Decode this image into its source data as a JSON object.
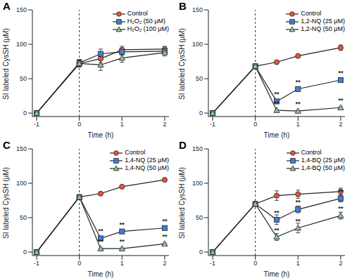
{
  "chart_data": [
    {
      "type": "line",
      "panel_label": "A",
      "x_label": "Time (h)",
      "y_label": "SI labeled CysSH (μM)",
      "x": [
        -1,
        0,
        0.5,
        1,
        2
      ],
      "xlim": [
        -1.1,
        2.1
      ],
      "xticks": [
        -1,
        0,
        1,
        2
      ],
      "ylim": [
        -5,
        150
      ],
      "yticks": [
        0,
        50,
        100,
        150
      ],
      "reference_x": 0,
      "legend": "upper right",
      "series": [
        {
          "name": "Control",
          "color": "#e8553a",
          "marker": "circle",
          "values": [
            0,
            72,
            79,
            92,
            93
          ],
          "errors": [
            0,
            5,
            6,
            5,
            4
          ],
          "annotations": [
            null,
            null,
            null,
            null,
            null
          ]
        },
        {
          "name": "H₂O₂ (50 μM)",
          "color": "#3f7fd9",
          "marker": "square",
          "values": [
            0,
            73,
            86,
            89,
            90
          ],
          "errors": [
            0,
            5,
            7,
            5,
            4
          ],
          "annotations": [
            null,
            null,
            null,
            null,
            null
          ]
        },
        {
          "name": "H₂O₂ (100 μM)",
          "color": "#8cc49a",
          "marker": "triangle",
          "values": [
            0,
            72,
            70,
            80,
            88
          ],
          "errors": [
            0,
            5,
            8,
            6,
            5
          ],
          "annotations": [
            null,
            null,
            null,
            null,
            null
          ]
        }
      ]
    },
    {
      "type": "line",
      "panel_label": "B",
      "x_label": "Time (h)",
      "y_label": "SI labeled CysSH (μM)",
      "x": [
        -1,
        0,
        0.5,
        1,
        2
      ],
      "xlim": [
        -1.1,
        2.1
      ],
      "xticks": [
        -1,
        0,
        1,
        2
      ],
      "ylim": [
        -5,
        150
      ],
      "yticks": [
        0,
        50,
        100,
        150
      ],
      "reference_x": 0,
      "legend": "upper right",
      "series": [
        {
          "name": "Control",
          "color": "#e8553a",
          "marker": "circle",
          "values": [
            0,
            68,
            74,
            83,
            95
          ],
          "errors": [
            0,
            3,
            2,
            2,
            4
          ],
          "annotations": [
            null,
            null,
            null,
            null,
            null
          ]
        },
        {
          "name": "1,2-NQ (25 μM)",
          "color": "#3f7fd9",
          "marker": "square",
          "values": [
            0,
            68,
            17,
            35,
            48
          ],
          "errors": [
            0,
            3,
            3,
            3,
            2
          ],
          "annotations": [
            null,
            null,
            "**",
            "**",
            "**"
          ]
        },
        {
          "name": "1,2-NQ (50 μM)",
          "color": "#8cc49a",
          "marker": "triangle",
          "values": [
            0,
            68,
            4,
            3,
            8
          ],
          "errors": [
            0,
            3,
            1,
            1,
            1
          ],
          "annotations": [
            null,
            null,
            "**",
            "**",
            "**"
          ]
        }
      ]
    },
    {
      "type": "line",
      "panel_label": "C",
      "x_label": "Time (h)",
      "y_label": "SI labeled CysSH (μM)",
      "x": [
        -1,
        0,
        0.5,
        1,
        2
      ],
      "xlim": [
        -1.1,
        2.1
      ],
      "xticks": [
        -1,
        0,
        1,
        2
      ],
      "ylim": [
        -5,
        150
      ],
      "yticks": [
        0,
        50,
        100,
        150
      ],
      "reference_x": 0,
      "legend": "upper right",
      "series": [
        {
          "name": "Control",
          "color": "#e8553a",
          "marker": "circle",
          "values": [
            0,
            80,
            85,
            95,
            105
          ],
          "errors": [
            0,
            2,
            2,
            2,
            2
          ],
          "annotations": [
            null,
            null,
            null,
            null,
            null
          ]
        },
        {
          "name": "1,4-NQ (25 μM)",
          "color": "#3f7fd9",
          "marker": "square",
          "values": [
            0,
            80,
            20,
            30,
            35
          ],
          "errors": [
            0,
            2,
            2,
            2,
            2
          ],
          "annotations": [
            null,
            null,
            "**",
            "**",
            "**"
          ]
        },
        {
          "name": "1,4-NQ (50 μM)",
          "color": "#8cc49a",
          "marker": "triangle",
          "values": [
            0,
            80,
            5,
            5,
            12
          ],
          "errors": [
            0,
            2,
            1,
            1,
            1
          ],
          "annotations": [
            null,
            null,
            "**",
            "**",
            "**"
          ]
        }
      ]
    },
    {
      "type": "line",
      "panel_label": "D",
      "x_label": "Time (h)",
      "y_label": "SI labeled CysSH (μM)",
      "x": [
        -1,
        0,
        0.5,
        1,
        2
      ],
      "xlim": [
        -1.1,
        2.1
      ],
      "xticks": [
        -1,
        0,
        1,
        2
      ],
      "ylim": [
        -5,
        150
      ],
      "yticks": [
        0,
        50,
        100,
        150
      ],
      "reference_x": 0,
      "legend": "upper right",
      "series": [
        {
          "name": "Control",
          "color": "#e8553a",
          "marker": "circle",
          "values": [
            0,
            70,
            82,
            84,
            88
          ],
          "errors": [
            0,
            3,
            7,
            6,
            5
          ],
          "annotations": [
            null,
            null,
            null,
            null,
            null
          ]
        },
        {
          "name": "1,4-BQ (25 μM)",
          "color": "#3f7fd9",
          "marker": "square",
          "values": [
            0,
            70,
            47,
            62,
            78
          ],
          "errors": [
            0,
            3,
            7,
            5,
            5
          ],
          "annotations": [
            null,
            null,
            "**",
            "**",
            "**"
          ]
        },
        {
          "name": "1,4-BQ (50 μM)",
          "color": "#8cc49a",
          "marker": "triangle",
          "values": [
            0,
            70,
            22,
            35,
            53
          ],
          "errors": [
            0,
            3,
            5,
            7,
            5
          ],
          "annotations": [
            null,
            null,
            "**",
            "**",
            "**"
          ]
        }
      ]
    }
  ]
}
